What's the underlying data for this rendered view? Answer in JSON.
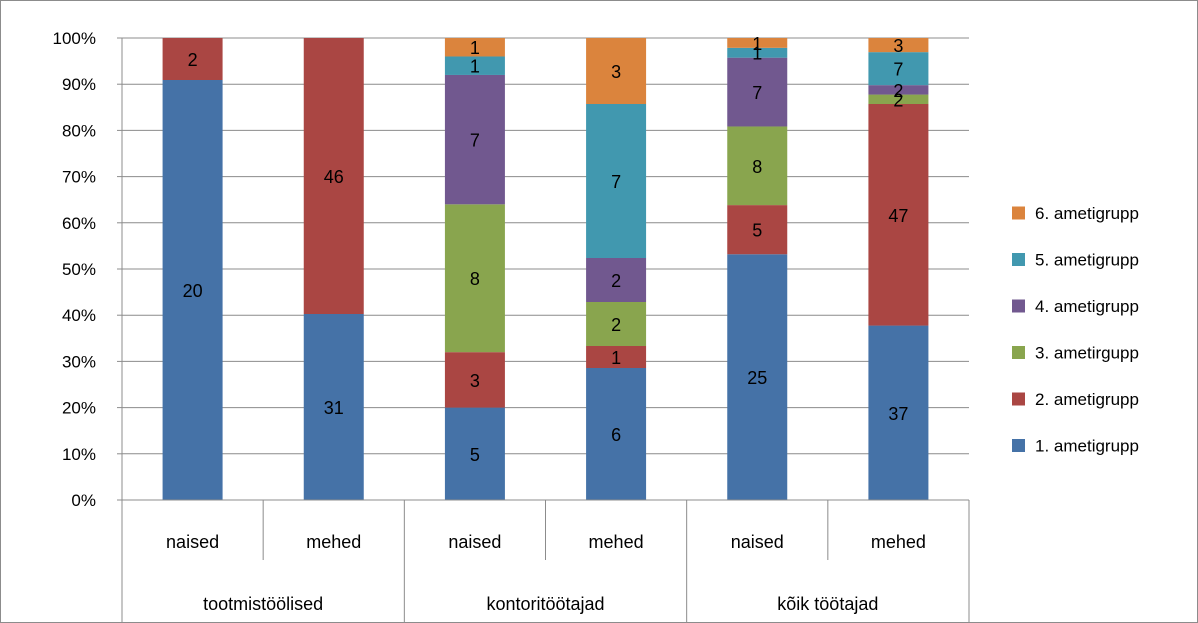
{
  "chart_data": {
    "type": "bar",
    "stacked": true,
    "percent_stacked": true,
    "categories": [
      "naised",
      "mehed",
      "naised",
      "mehed",
      "naised",
      "mehed"
    ],
    "groups": [
      {
        "label": "tootmistöölised",
        "span": 2
      },
      {
        "label": "kontoritöötajad",
        "span": 2
      },
      {
        "label": "kõik töötajad",
        "span": 2
      }
    ],
    "series": [
      {
        "name": "1. ametigrupp",
        "color": "#4572A7",
        "values": [
          20,
          31,
          5,
          6,
          25,
          37
        ]
      },
      {
        "name": "2. ametigrupp",
        "color": "#AA4643",
        "values": [
          2,
          46,
          3,
          1,
          5,
          47
        ]
      },
      {
        "name": "3. ametirgupp",
        "color": "#89A54E",
        "values": [
          0,
          0,
          8,
          2,
          8,
          2
        ]
      },
      {
        "name": "4. ametigrupp",
        "color": "#71588F",
        "values": [
          0,
          0,
          7,
          2,
          7,
          2
        ]
      },
      {
        "name": "5. ametigrupp",
        "color": "#4198AF",
        "values": [
          0,
          0,
          1,
          7,
          1,
          7
        ]
      },
      {
        "name": "6. ametigrupp",
        "color": "#DB843D",
        "values": [
          0,
          0,
          1,
          3,
          1,
          3
        ]
      }
    ],
    "ylim": [
      0,
      100
    ],
    "y_ticks": [
      "0%",
      "10%",
      "20%",
      "30%",
      "40%",
      "50%",
      "60%",
      "70%",
      "80%",
      "90%",
      "100%"
    ],
    "grid": true,
    "legend_placement": "right"
  }
}
